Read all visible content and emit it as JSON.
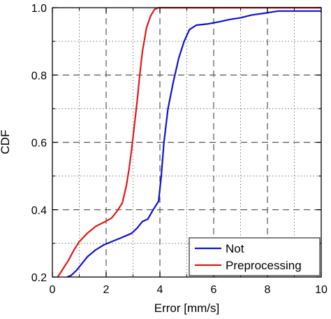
{
  "chart_data": {
    "type": "line",
    "xlabel": "Error [mm/s]",
    "ylabel": "CDF",
    "xlim": [
      0,
      10
    ],
    "ylim": [
      0.2,
      1.0
    ],
    "x_major_ticks": [
      0,
      2,
      4,
      6,
      8,
      10
    ],
    "y_major_ticks": [
      0.2,
      0.4,
      0.6,
      0.8,
      1.0
    ],
    "x_tick_labels": [
      "0",
      "2",
      "4",
      "6",
      "8",
      "10"
    ],
    "y_tick_labels": [
      "0.2",
      "0.4",
      "0.6",
      "0.8",
      "1.0"
    ],
    "x_minor_ticks": [
      1,
      3,
      5,
      7,
      9
    ],
    "y_minor_ticks": [
      0.3,
      0.5,
      0.7,
      0.9
    ],
    "grid": true,
    "legend_position": "bottom-right",
    "series": [
      {
        "name": "Not",
        "color": "#1010d0",
        "points": [
          [
            0.55,
            0.2
          ],
          [
            0.7,
            0.205
          ],
          [
            0.9,
            0.22
          ],
          [
            1.1,
            0.24
          ],
          [
            1.3,
            0.26
          ],
          [
            1.6,
            0.28
          ],
          [
            1.9,
            0.295
          ],
          [
            2.2,
            0.305
          ],
          [
            2.6,
            0.318
          ],
          [
            2.95,
            0.33
          ],
          [
            3.15,
            0.345
          ],
          [
            3.35,
            0.365
          ],
          [
            3.55,
            0.372
          ],
          [
            3.75,
            0.4
          ],
          [
            3.95,
            0.425
          ],
          [
            4.05,
            0.5
          ],
          [
            4.15,
            0.6
          ],
          [
            4.3,
            0.7
          ],
          [
            4.5,
            0.78
          ],
          [
            4.7,
            0.85
          ],
          [
            4.9,
            0.9
          ],
          [
            5.1,
            0.935
          ],
          [
            5.35,
            0.948
          ],
          [
            5.8,
            0.952
          ],
          [
            6.2,
            0.958
          ],
          [
            6.6,
            0.965
          ],
          [
            7.0,
            0.97
          ],
          [
            7.4,
            0.978
          ],
          [
            8.0,
            0.985
          ],
          [
            8.4,
            0.99
          ],
          [
            10.0,
            0.99
          ]
        ]
      },
      {
        "name": "Preprocessing",
        "color": "#e01818",
        "points": [
          [
            0.2,
            0.2
          ],
          [
            0.4,
            0.225
          ],
          [
            0.6,
            0.25
          ],
          [
            0.8,
            0.28
          ],
          [
            1.0,
            0.305
          ],
          [
            1.3,
            0.33
          ],
          [
            1.6,
            0.35
          ],
          [
            1.9,
            0.362
          ],
          [
            2.2,
            0.375
          ],
          [
            2.4,
            0.395
          ],
          [
            2.6,
            0.42
          ],
          [
            2.75,
            0.47
          ],
          [
            2.85,
            0.52
          ],
          [
            2.95,
            0.58
          ],
          [
            3.05,
            0.65
          ],
          [
            3.15,
            0.72
          ],
          [
            3.25,
            0.8
          ],
          [
            3.35,
            0.87
          ],
          [
            3.5,
            0.94
          ],
          [
            3.65,
            0.975
          ],
          [
            3.8,
            0.995
          ],
          [
            3.95,
            1.0
          ],
          [
            10.0,
            1.0
          ]
        ]
      }
    ]
  }
}
